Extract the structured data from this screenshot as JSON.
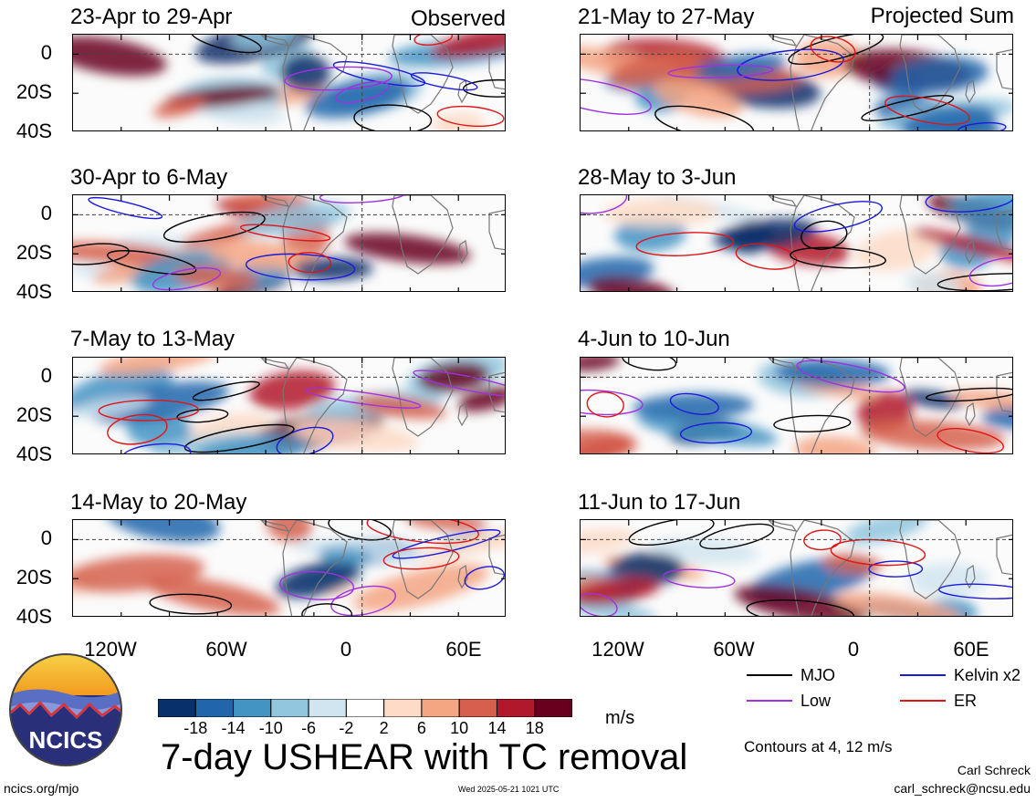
{
  "chart_data": {
    "type": "heatmap",
    "title": "7-day USHEAR with TC removal",
    "colorbar": {
      "unit": "m/s",
      "tick_labels": [
        "-18",
        "-14",
        "-10",
        "-6",
        "-2",
        "2",
        "6",
        "10",
        "14",
        "18"
      ],
      "colors": [
        "#08306b",
        "#2166ac",
        "#4393c3",
        "#92c5de",
        "#d1e5f0",
        "#ffffff",
        "#fddbc7",
        "#f4a582",
        "#d6604d",
        "#b2182b",
        "#67001f"
      ]
    },
    "x_tick_labels": [
      "120W",
      "60W",
      "0",
      "60E"
    ],
    "y_tick_labels": [
      "0",
      "20S",
      "40S"
    ],
    "contours_note": "Contours at 4, 12 m/s",
    "legend": [
      {
        "label": "MJO",
        "color": "#000000"
      },
      {
        "label": "Kelvin x2",
        "color": "#1a1adb"
      },
      {
        "label": "Low",
        "color": "#a030e0"
      },
      {
        "label": "ER",
        "color": "#e01515"
      }
    ],
    "column_tags": [
      "Observed",
      "Projected Sum"
    ],
    "panels_left": [
      {
        "title": "23-Apr to 29-Apr"
      },
      {
        "title": "30-Apr to 6-May"
      },
      {
        "title": "7-May to 13-May"
      },
      {
        "title": "14-May to 20-May"
      }
    ],
    "panels_right": [
      {
        "title": "21-May to 27-May"
      },
      {
        "title": "28-May to 3-Jun"
      },
      {
        "title": "4-Jun to 10-Jun"
      },
      {
        "title": "11-Jun to 17-Jun"
      }
    ]
  },
  "footer": {
    "logo_text": "NCICS",
    "url": "ncics.org/mjo",
    "timestamp": "Wed 2025-05-21 1021 UTC",
    "author": "Carl Schreck",
    "email": "carl_schreck@ncsu.edu"
  }
}
